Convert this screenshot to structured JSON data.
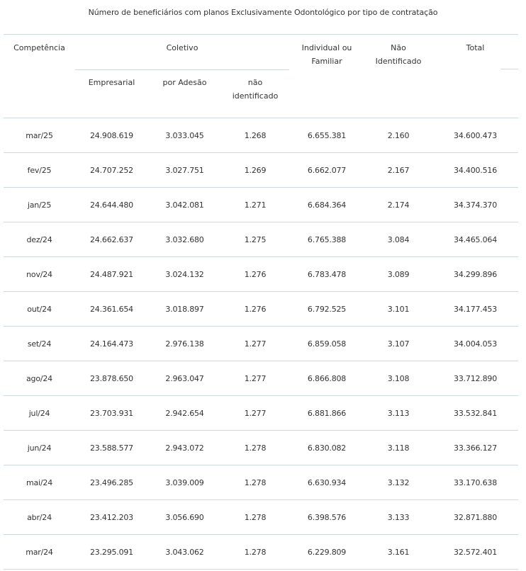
{
  "caption": "Número de beneficiários com planos Exclusivamente Odontológico por tipo de contratação",
  "headers": {
    "competencia": "Competência",
    "coletivo": "Coletivo",
    "empresarial": "Empresarial",
    "por_adesao": "por Adesão",
    "nao_identificado": "não identificado",
    "individual_familiar": "Individual ou Familiar",
    "nao_identificado_main": "Não Identificado",
    "total": "Total"
  },
  "rows": [
    {
      "competencia": "mar/25",
      "empresarial": "24.908.619",
      "por_adesao": "3.033.045",
      "nao_identificado": "1.268",
      "individual_familiar": "6.655.381",
      "nao_identificado_main": "2.160",
      "total": "34.600.473"
    },
    {
      "competencia": "fev/25",
      "empresarial": "24.707.252",
      "por_adesao": "3.027.751",
      "nao_identificado": "1.269",
      "individual_familiar": "6.662.077",
      "nao_identificado_main": "2.167",
      "total": "34.400.516"
    },
    {
      "competencia": "jan/25",
      "empresarial": "24.644.480",
      "por_adesao": "3.042.081",
      "nao_identificado": "1.271",
      "individual_familiar": "6.684.364",
      "nao_identificado_main": "2.174",
      "total": "34.374.370"
    },
    {
      "competencia": "dez/24",
      "empresarial": "24.662.637",
      "por_adesao": "3.032.680",
      "nao_identificado": "1.275",
      "individual_familiar": "6.765.388",
      "nao_identificado_main": "3.084",
      "total": "34.465.064"
    },
    {
      "competencia": "nov/24",
      "empresarial": "24.487.921",
      "por_adesao": "3.024.132",
      "nao_identificado": "1.276",
      "individual_familiar": "6.783.478",
      "nao_identificado_main": "3.089",
      "total": "34.299.896"
    },
    {
      "competencia": "out/24",
      "empresarial": "24.361.654",
      "por_adesao": "3.018.897",
      "nao_identificado": "1.276",
      "individual_familiar": "6.792.525",
      "nao_identificado_main": "3.101",
      "total": "34.177.453"
    },
    {
      "competencia": "set/24",
      "empresarial": "24.164.473",
      "por_adesao": "2.976.138",
      "nao_identificado": "1.277",
      "individual_familiar": "6.859.058",
      "nao_identificado_main": "3.107",
      "total": "34.004.053"
    },
    {
      "competencia": "ago/24",
      "empresarial": "23.878.650",
      "por_adesao": "2.963.047",
      "nao_identificado": "1.277",
      "individual_familiar": "6.866.808",
      "nao_identificado_main": "3.108",
      "total": "33.712.890"
    },
    {
      "competencia": "jul/24",
      "empresarial": "23.703.931",
      "por_adesao": "2.942.654",
      "nao_identificado": "1.277",
      "individual_familiar": "6.881.866",
      "nao_identificado_main": "3.113",
      "total": "33.532.841"
    },
    {
      "competencia": "jun/24",
      "empresarial": "23.588.577",
      "por_adesao": "2.943.072",
      "nao_identificado": "1.278",
      "individual_familiar": "6.830.082",
      "nao_identificado_main": "3.118",
      "total": "33.366.127"
    },
    {
      "competencia": "mai/24",
      "empresarial": "23.496.285",
      "por_adesao": "3.039.009",
      "nao_identificado": "1.278",
      "individual_familiar": "6.630.934",
      "nao_identificado_main": "3.132",
      "total": "33.170.638"
    },
    {
      "competencia": "abr/24",
      "empresarial": "23.412.203",
      "por_adesao": "3.056.690",
      "nao_identificado": "1.278",
      "individual_familiar": "6.398.576",
      "nao_identificado_main": "3.133",
      "total": "32.871.880"
    },
    {
      "competencia": "mar/24",
      "empresarial": "23.295.091",
      "por_adesao": "3.043.062",
      "nao_identificado": "1.278",
      "individual_familiar": "6.229.809",
      "nao_identificado_main": "3.161",
      "total": "32.572.401"
    }
  ]
}
